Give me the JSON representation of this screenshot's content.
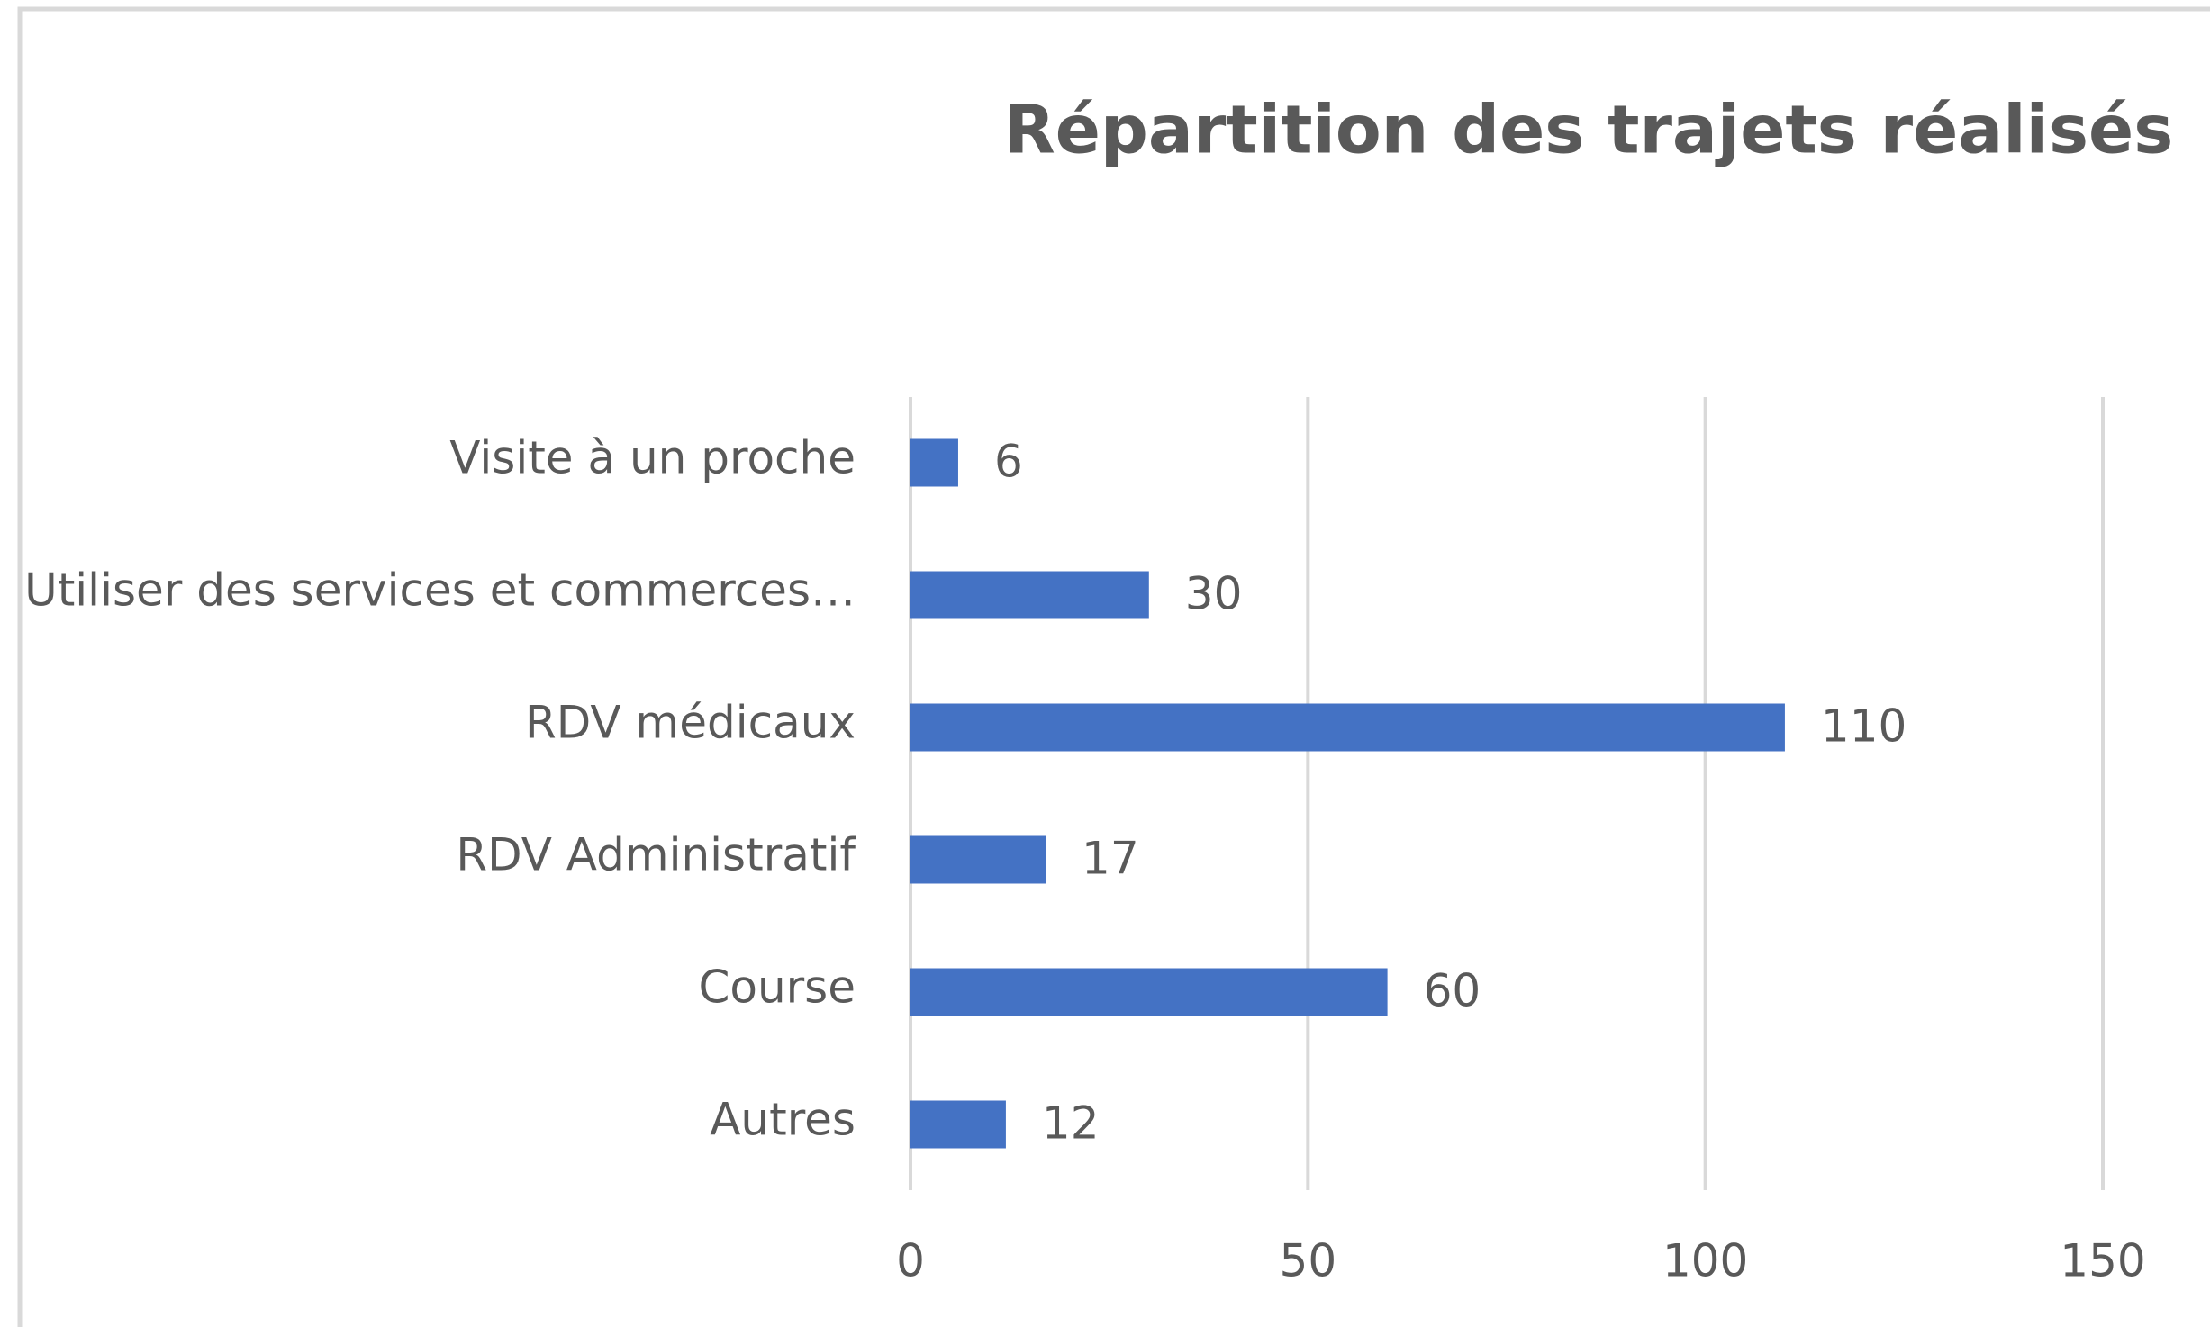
{
  "chart_data": {
    "type": "bar",
    "orientation": "horizontal",
    "title": "Répartition des trajets réalisés",
    "categories": [
      "Visite à un proche",
      "Utiliser des services et commerces…",
      "RDV médicaux",
      "RDV Administratif",
      "Course",
      "Autres"
    ],
    "values": [
      6,
      30,
      110,
      17,
      60,
      12
    ],
    "color": "#4472c4",
    "xlim": [
      0,
      150
    ],
    "xticks": [
      0,
      50,
      100,
      150
    ],
    "grid": true
  }
}
